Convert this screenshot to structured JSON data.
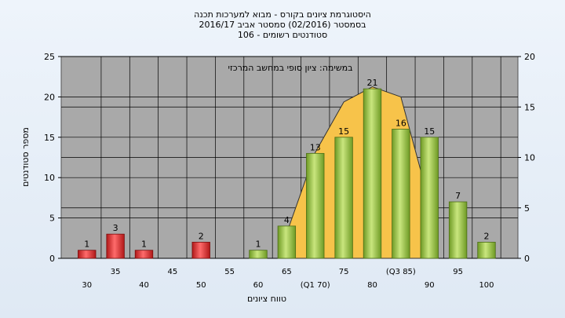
{
  "chart_data": {
    "type": "bar",
    "title_lines": [
      "היסטוגרמת ציונים בקורס - מבוא למערכות תכנה",
      "בסמסטר  (02/2016)  סמסטר אביב 2016/17",
      "סטודנטים רשומים - 106"
    ],
    "annotation": "במשימה: ציון סופי במחשב המרכזי",
    "xlabel": "טווח ציונים",
    "ylabel": "מספר סטודנטים",
    "categories": [
      "30",
      "35",
      "40",
      "45",
      "50",
      "55",
      "60",
      "65",
      "(Q1 70)",
      "75",
      "80",
      "(Q3 85)",
      "90",
      "95",
      "100"
    ],
    "values": [
      1,
      3,
      1,
      0,
      2,
      0,
      1,
      4,
      13,
      15,
      21,
      16,
      15,
      7,
      2
    ],
    "value_labels": [
      "1",
      "3",
      "1",
      "",
      "2",
      "",
      "1",
      "4",
      "13",
      "15",
      "21",
      "16",
      "15",
      "7",
      "2"
    ],
    "bar_colors": [
      "#d42a2a",
      "#d42a2a",
      "#d42a2a",
      "#d42a2a",
      "#d42a2a",
      "#8fbf3c",
      "#8fbf3c",
      "#8fbf3c",
      "#8fbf3c",
      "#8fbf3c",
      "#8fbf3c",
      "#8fbf3c",
      "#8fbf3c",
      "#8fbf3c",
      "#8fbf3c"
    ],
    "ylim": [
      0,
      25
    ],
    "yticks": [
      "0",
      "5",
      "10",
      "15",
      "20",
      "25"
    ],
    "y2lim": [
      0,
      20
    ],
    "y2ticks": [
      "0",
      "5",
      "10",
      "15",
      "20"
    ],
    "distribution_curve": {
      "x_categories": [
        "65",
        "(Q1 70)",
        "75",
        "80",
        "(Q3 85)",
        "90"
      ],
      "y2_values": [
        2.5,
        10.5,
        15.5,
        17,
        16,
        5.5
      ],
      "fill": "#f7c34a"
    },
    "colors": {
      "plot_background": "#a9a9a9",
      "fail_bar": "#d42a2a",
      "pass_bar": "#8fbf3c",
      "curve_fill": "#f7c34a"
    },
    "grid": true
  }
}
